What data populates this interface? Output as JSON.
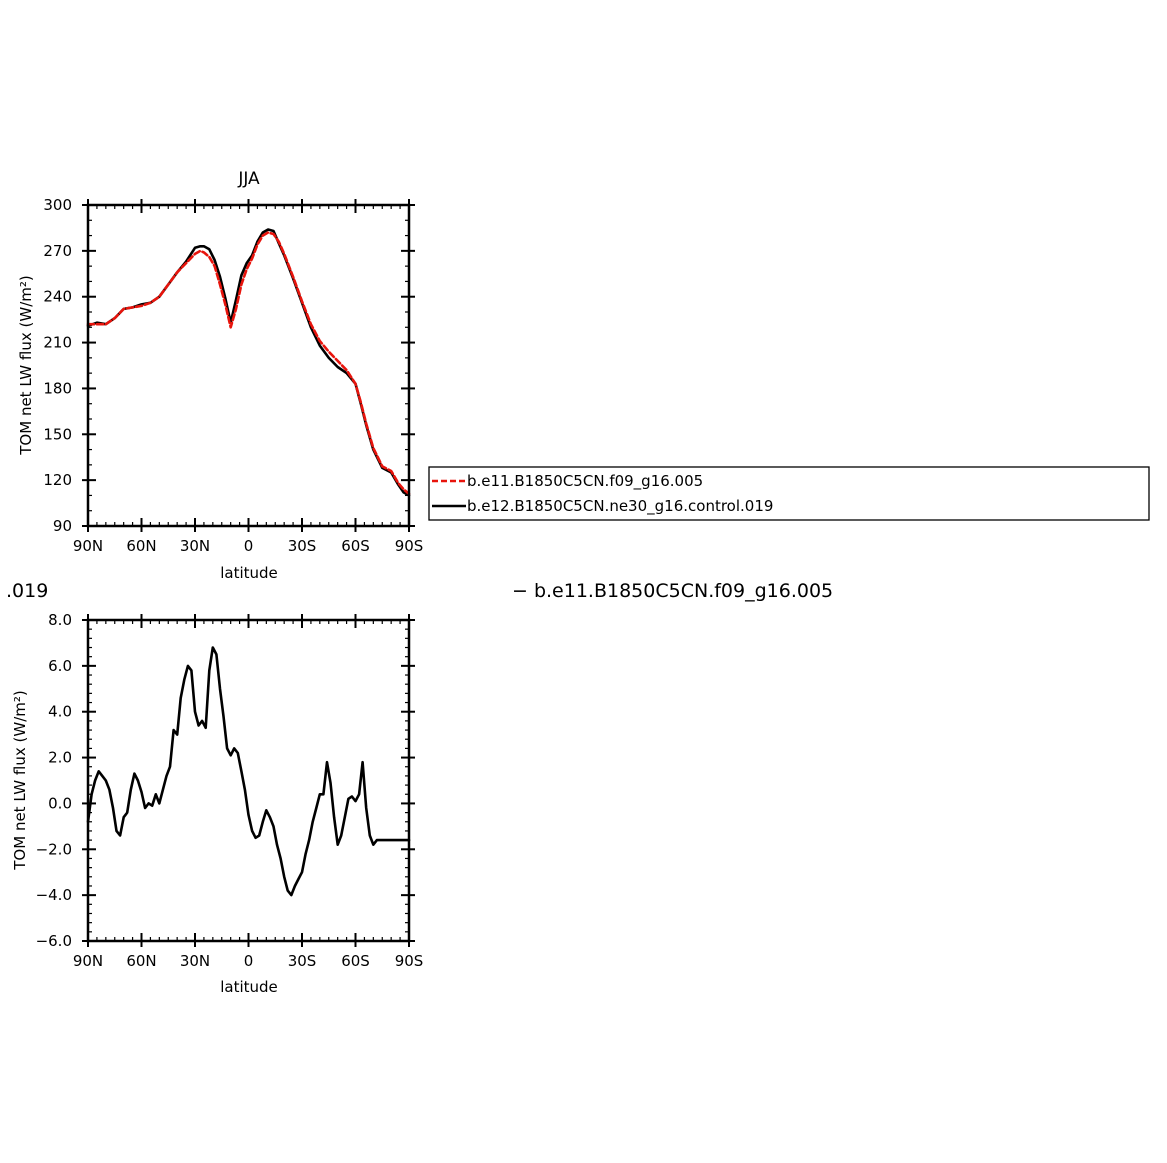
{
  "captions": {
    "left_fragment": ".019",
    "right_fragment": "− b.e11.B1850C5CN.f09_g16.005"
  },
  "legend": {
    "entries": [
      {
        "label": "b.e11.B1850C5CN.f09_g16.005",
        "color": "#e8140c",
        "dashed": true
      },
      {
        "label": "b.e12.B1850C5CN.ne30_g16.control.019",
        "color": "#000000",
        "dashed": false
      }
    ],
    "placement": "right of top panel"
  },
  "chart_data": [
    {
      "type": "line",
      "title": "JJA",
      "xlabel": "latitude",
      "ylabel": "TOM net LW flux (W/m²)",
      "x_axis": "latitude, 90N (left) to 90S (right); N positive",
      "xlim": [
        90,
        -90
      ],
      "ylim": [
        90,
        300
      ],
      "x_ticks": [
        90,
        60,
        30,
        0,
        -30,
        -60,
        -90
      ],
      "x_tick_labels": [
        "90N",
        "60N",
        "30N",
        "0",
        "30S",
        "60S",
        "90S"
      ],
      "y_ticks": [
        90,
        120,
        150,
        180,
        210,
        240,
        270,
        300
      ],
      "y_tick_labels": [
        "90",
        "120",
        "150",
        "180",
        "210",
        "240",
        "270",
        "300"
      ],
      "grid": false,
      "series": [
        {
          "name": "b.e12.B1850C5CN.ne30_g16.control.019",
          "color": "#000000",
          "dashed": false,
          "x": [
            90,
            85,
            80,
            75,
            70,
            65,
            60,
            55,
            50,
            45,
            40,
            35,
            30,
            27,
            25,
            22,
            19,
            16,
            13,
            10,
            7,
            4,
            1,
            -2,
            -5,
            -8,
            -11,
            -14,
            -17,
            -20,
            -25,
            -30,
            -35,
            -40,
            -45,
            -50,
            -55,
            -60,
            -63,
            -66,
            -70,
            -75,
            -80,
            -84,
            -87,
            -90
          ],
          "values": [
            221,
            223,
            222,
            226,
            232,
            233,
            235,
            236,
            240,
            248,
            256,
            263,
            272,
            273,
            273,
            271,
            264,
            253,
            239,
            223,
            238,
            254,
            262,
            267,
            276,
            282,
            284,
            283,
            275,
            267,
            252,
            236,
            220,
            208,
            200,
            194,
            190,
            183,
            170,
            156,
            140,
            128,
            125,
            117,
            112,
            110
          ]
        },
        {
          "name": "b.e11.B1850C5CN.f09_g16.005",
          "color": "#e8140c",
          "dashed": true,
          "x": [
            90,
            85,
            80,
            75,
            70,
            65,
            60,
            55,
            50,
            45,
            40,
            35,
            30,
            27,
            25,
            22,
            19,
            16,
            13,
            10,
            7,
            4,
            1,
            -2,
            -5,
            -8,
            -11,
            -14,
            -17,
            -20,
            -25,
            -30,
            -35,
            -40,
            -45,
            -50,
            -55,
            -60,
            -63,
            -66,
            -70,
            -75,
            -80,
            -84,
            -87,
            -90
          ],
          "values": [
            222,
            222,
            222,
            226,
            232,
            233,
            234,
            236,
            240,
            248,
            256,
            262,
            268,
            270,
            269,
            266,
            260,
            248,
            235,
            220,
            232,
            248,
            258,
            265,
            274,
            280,
            282,
            281,
            276,
            268,
            253,
            237,
            222,
            211,
            204,
            198,
            192,
            183,
            171,
            157,
            141,
            129,
            126,
            118,
            114,
            111
          ]
        }
      ]
    },
    {
      "type": "line",
      "title": "",
      "xlabel": "latitude",
      "ylabel": "TOM net LW flux (W/m²)",
      "x_axis": "latitude, 90N (left) to 90S (right); N positive",
      "xlim": [
        90,
        -90
      ],
      "ylim": [
        -6,
        8
      ],
      "x_ticks": [
        90,
        60,
        30,
        0,
        -30,
        -60,
        -90
      ],
      "x_tick_labels": [
        "90N",
        "60N",
        "30N",
        "0",
        "30S",
        "60S",
        "90S"
      ],
      "y_ticks": [
        -6,
        -4,
        -2,
        0,
        2,
        4,
        6,
        8
      ],
      "y_tick_labels": [
        "−6.0",
        "−4.0",
        "−2.0",
        "0.0",
        "2.0",
        "4.0",
        "6.0",
        "8.0"
      ],
      "grid": false,
      "series": [
        {
          "color": "#000000",
          "dashed": false,
          "x": [
            90,
            88,
            86,
            84,
            82,
            80,
            78,
            76,
            74,
            72,
            70,
            68,
            66,
            64,
            62,
            60,
            58,
            56,
            54,
            52,
            50,
            48,
            46,
            44,
            42,
            40,
            38,
            36,
            34,
            32,
            30,
            28,
            26,
            24,
            22,
            20,
            18,
            16,
            14,
            12,
            10,
            8,
            6,
            4,
            2,
            0,
            -2,
            -4,
            -6,
            -8,
            -10,
            -12,
            -14,
            -16,
            -18,
            -20,
            -22,
            -24,
            -26,
            -28,
            -30,
            -32,
            -34,
            -36,
            -38,
            -40,
            -42,
            -44,
            -46,
            -48,
            -50,
            -52,
            -54,
            -56,
            -58,
            -60,
            -62,
            -64,
            -66,
            -68,
            -70,
            -72,
            -74,
            -76,
            -78,
            -80,
            -82,
            -84,
            -86,
            -88,
            -90
          ],
          "values": [
            -0.8,
            0.4,
            1.0,
            1.4,
            1.2,
            1.0,
            0.6,
            -0.2,
            -1.2,
            -1.4,
            -0.6,
            -0.4,
            0.6,
            1.3,
            1.0,
            0.5,
            -0.2,
            0.0,
            -0.1,
            0.4,
            0.0,
            0.6,
            1.2,
            1.6,
            3.2,
            3.0,
            4.6,
            5.4,
            6.0,
            5.8,
            4.0,
            3.4,
            3.6,
            3.3,
            5.8,
            6.8,
            6.5,
            5.0,
            3.8,
            2.4,
            2.1,
            2.4,
            2.2,
            1.4,
            0.6,
            -0.5,
            -1.2,
            -1.5,
            -1.4,
            -0.8,
            -0.3,
            -0.6,
            -1.0,
            -1.8,
            -2.4,
            -3.2,
            -3.8,
            -4.0,
            -3.6,
            -3.3,
            -3.0,
            -2.2,
            -1.6,
            -0.8,
            -0.2,
            0.4,
            0.4,
            1.8,
            0.9,
            -0.6,
            -1.8,
            -1.4,
            -0.6,
            0.2,
            0.3,
            0.1,
            0.4,
            1.8,
            -0.2,
            -1.4,
            -1.8,
            -1.6,
            -1.6,
            -1.6,
            -1.6,
            -1.6,
            -1.6,
            -1.6,
            -1.6,
            -1.6,
            -1.6
          ]
        }
      ]
    }
  ]
}
